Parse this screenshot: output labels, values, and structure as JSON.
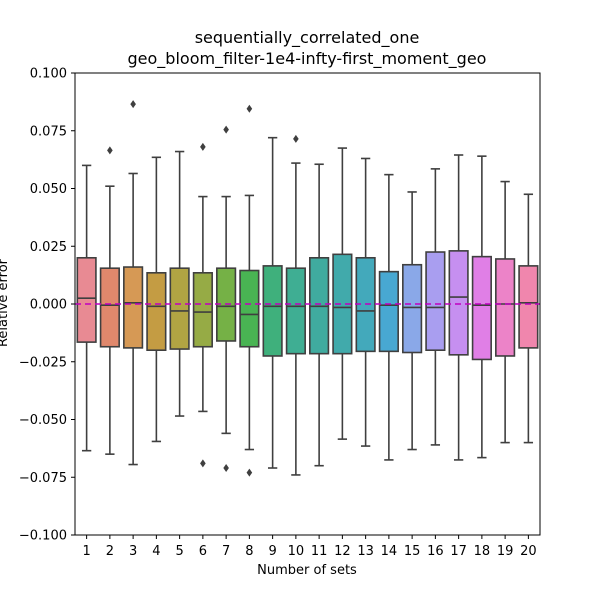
{
  "chart_data": {
    "type": "box",
    "title_lines": [
      "sequentially_correlated_one",
      "geo_bloom_filter-1e4-infty-first_moment_geo"
    ],
    "xlabel": "Number of sets",
    "ylabel": "Relative error",
    "ylim": [
      -0.1,
      0.1
    ],
    "yticks": [
      -0.1,
      -0.075,
      -0.05,
      -0.025,
      0.0,
      0.025,
      0.05,
      0.075,
      0.1
    ],
    "ytick_labels": [
      "−0.100",
      "−0.075",
      "−0.050",
      "−0.025",
      "0.000",
      "0.025",
      "0.050",
      "0.075",
      "0.100"
    ],
    "categories": [
      "1",
      "2",
      "3",
      "4",
      "5",
      "6",
      "7",
      "8",
      "9",
      "10",
      "11",
      "12",
      "13",
      "14",
      "15",
      "16",
      "17",
      "18",
      "19",
      "20"
    ],
    "reference_line": {
      "y": 0.0,
      "color": "#bf00bf",
      "style": "dashed"
    },
    "boxes": [
      {
        "q1": -0.0165,
        "median": 0.0025,
        "q3": 0.02,
        "whislo": -0.0635,
        "whishi": 0.06,
        "fliers": [],
        "color": "#e88a93"
      },
      {
        "q1": -0.0185,
        "median": -0.0005,
        "q3": 0.0155,
        "whislo": -0.065,
        "whishi": 0.051,
        "fliers": [
          0.0665
        ],
        "color": "#e0886c"
      },
      {
        "q1": -0.019,
        "median": 0.0005,
        "q3": 0.016,
        "whislo": -0.0695,
        "whishi": 0.0565,
        "fliers": [
          0.0865
        ],
        "color": "#d69955"
      },
      {
        "q1": -0.02,
        "median": -0.001,
        "q3": 0.0135,
        "whislo": -0.0595,
        "whishi": 0.0635,
        "fliers": [],
        "color": "#c49c43"
      },
      {
        "q1": -0.0195,
        "median": -0.003,
        "q3": 0.0155,
        "whislo": -0.0485,
        "whishi": 0.066,
        "fliers": [],
        "color": "#b1a443"
      },
      {
        "q1": -0.0185,
        "median": -0.0035,
        "q3": 0.0135,
        "whislo": -0.0465,
        "whishi": 0.0465,
        "fliers": [
          0.068,
          -0.069
        ],
        "color": "#96ab45"
      },
      {
        "q1": -0.016,
        "median": -0.001,
        "q3": 0.0155,
        "whislo": -0.056,
        "whishi": 0.0465,
        "fliers": [
          0.0755,
          -0.071
        ],
        "color": "#75b146"
      },
      {
        "q1": -0.0185,
        "median": -0.0045,
        "q3": 0.0145,
        "whislo": -0.063,
        "whishi": 0.047,
        "fliers": [
          0.0845,
          -0.073
        ],
        "color": "#49b453"
      },
      {
        "q1": -0.0225,
        "median": -0.001,
        "q3": 0.0165,
        "whislo": -0.071,
        "whishi": 0.072,
        "fliers": [],
        "color": "#3fb07c"
      },
      {
        "q1": -0.0215,
        "median": -0.001,
        "q3": 0.0155,
        "whislo": -0.074,
        "whishi": 0.061,
        "fliers": [
          0.0715
        ],
        "color": "#3fae93"
      },
      {
        "q1": -0.0215,
        "median": -0.001,
        "q3": 0.02,
        "whislo": -0.07,
        "whishi": 0.0605,
        "fliers": [],
        "color": "#40ab9f"
      },
      {
        "q1": -0.0215,
        "median": -0.0015,
        "q3": 0.0215,
        "whislo": -0.0585,
        "whishi": 0.0675,
        "fliers": [],
        "color": "#41aaab"
      },
      {
        "q1": -0.0205,
        "median": -0.003,
        "q3": 0.02,
        "whislo": -0.0615,
        "whishi": 0.063,
        "fliers": [],
        "color": "#43a9bb"
      },
      {
        "q1": -0.0205,
        "median": -0.0005,
        "q3": 0.014,
        "whislo": -0.0675,
        "whishi": 0.056,
        "fliers": [],
        "color": "#48a8d2"
      },
      {
        "q1": -0.021,
        "median": -0.0015,
        "q3": 0.017,
        "whislo": -0.063,
        "whishi": 0.0485,
        "fliers": [],
        "color": "#8aa8e8"
      },
      {
        "q1": -0.02,
        "median": -0.0015,
        "q3": 0.0225,
        "whislo": -0.061,
        "whishi": 0.0585,
        "fliers": [],
        "color": "#a99ef0"
      },
      {
        "q1": -0.022,
        "median": 0.003,
        "q3": 0.023,
        "whislo": -0.0675,
        "whishi": 0.0645,
        "fliers": [],
        "color": "#c68ff0"
      },
      {
        "q1": -0.024,
        "median": -0.0005,
        "q3": 0.0205,
        "whislo": -0.0665,
        "whishi": 0.064,
        "fliers": [],
        "color": "#e07fe6"
      },
      {
        "q1": -0.0225,
        "median": 0.0,
        "q3": 0.0195,
        "whislo": -0.06,
        "whishi": 0.053,
        "fliers": [],
        "color": "#ec83c8"
      },
      {
        "q1": -0.019,
        "median": 0.0005,
        "q3": 0.0165,
        "whislo": -0.06,
        "whishi": 0.0475,
        "fliers": [],
        "color": "#f086ad"
      }
    ]
  }
}
